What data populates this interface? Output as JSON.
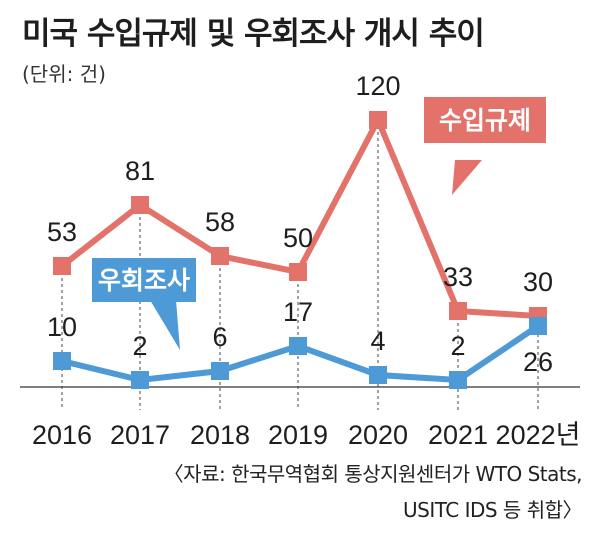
{
  "header": {
    "title": "미국 수입규제 및 우회조사 개시 추이",
    "unit": "(단위: 건)"
  },
  "chart_data": {
    "type": "line",
    "categories": [
      "2016",
      "2017",
      "2018",
      "2019",
      "2020",
      "2021",
      "2022년"
    ],
    "series": [
      {
        "name": "수입규제",
        "values": [
          53,
          81,
          58,
          50,
          120,
          33,
          30
        ],
        "color": "#e3726a"
      },
      {
        "name": "우회조사",
        "values": [
          10,
          2,
          6,
          17,
          4,
          2,
          26
        ],
        "color": "#4e9ad6"
      }
    ],
    "value_labels": {
      "수입규제": [
        "53",
        "81",
        "58",
        "50",
        "120",
        "33",
        "30"
      ],
      "우회조사": [
        "10",
        "2",
        "6",
        "17",
        "4",
        "2",
        "26"
      ]
    },
    "ylim": [
      0,
      120
    ],
    "grid": false,
    "legend": "callouts"
  },
  "source": {
    "line1": "〈자료: 한국무역협회 통상지원센터가 WTO Stats,",
    "line2": "USITC IDS 등 취합〉"
  }
}
